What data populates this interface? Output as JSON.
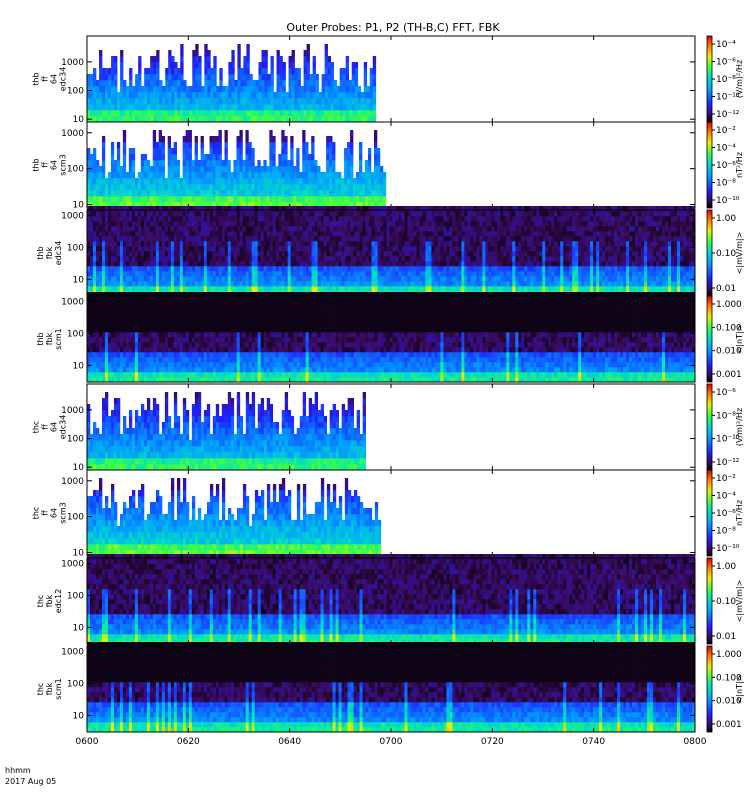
{
  "chart_data": {
    "type": "heatmap",
    "title": "Outer Probes: P1, P2 (TH-B,C) FFT, FBK",
    "time_axis": {
      "ticks": [
        "0600",
        "0620",
        "0640",
        "0700",
        "0720",
        "0740",
        "0800"
      ],
      "label_line1": "hhmm",
      "label_line2": "2017 Aug 05"
    },
    "panels": [
      {
        "ylabel": [
          "thb",
          "ff",
          "64",
          "edc34"
        ],
        "y_ticks": [
          "10",
          "100",
          "1000"
        ],
        "ylim": [
          8,
          8000
        ],
        "data_end": "0657",
        "colorbar": {
          "label": "(V/m)²/Hz",
          "ticks": [
            "10⁻⁴",
            "10⁻⁶",
            "10⁻⁸",
            "10⁻¹⁰",
            "10⁻¹²"
          ]
        }
      },
      {
        "ylabel": [
          "thb",
          "ff",
          "64",
          "scm3"
        ],
        "y_ticks": [
          "10",
          "100",
          "1000"
        ],
        "ylim": [
          8,
          2000
        ],
        "data_end": "0659",
        "colorbar": {
          "label": "nT²/Hz",
          "ticks": [
            "10⁻²",
            "10⁻⁴",
            "10⁻⁶",
            "10⁻⁸",
            "10⁻¹⁰"
          ]
        }
      },
      {
        "ylabel": [
          "thb",
          "fbk",
          "edc34"
        ],
        "y_ticks": [
          "10",
          "100",
          "1000"
        ],
        "ylim": [
          3,
          1500
        ],
        "data_end": "0800",
        "colorbar": {
          "label": "<|mV/m|>",
          "ticks": [
            "1.00",
            "0.10",
            "0.01"
          ]
        }
      },
      {
        "ylabel": [
          "thb",
          "fbk",
          "scm1"
        ],
        "y_ticks": [
          "10",
          "100",
          "1000"
        ],
        "ylim": [
          3,
          1500
        ],
        "data_end": "0800",
        "colorbar": {
          "label": "<|nT|>",
          "ticks": [
            "1.000",
            "0.100",
            "0.010",
            "0.001"
          ]
        }
      },
      {
        "ylabel": [
          "thc",
          "ff",
          "64",
          "edc34"
        ],
        "y_ticks": [
          "10",
          "100",
          "1000"
        ],
        "ylim": [
          8,
          8000
        ],
        "data_end": "0655",
        "colorbar": {
          "label": "(V/m)²/Hz",
          "ticks": [
            "10⁻⁶",
            "10⁻⁸",
            "10⁻¹⁰",
            "10⁻¹²"
          ]
        }
      },
      {
        "ylabel": [
          "thc",
          "ff",
          "64",
          "scm3"
        ],
        "y_ticks": [
          "10",
          "100",
          "1000"
        ],
        "ylim": [
          8,
          2000
        ],
        "data_end": "0658",
        "colorbar": {
          "label": "nT²/Hz",
          "ticks": [
            "10⁻²",
            "10⁻⁴",
            "10⁻⁶",
            "10⁻⁸",
            "10⁻¹⁰"
          ]
        }
      },
      {
        "ylabel": [
          "thc",
          "fbk",
          "edc12"
        ],
        "y_ticks": [
          "10",
          "100",
          "1000"
        ],
        "ylim": [
          3,
          1500
        ],
        "data_end": "0800",
        "colorbar": {
          "label": "<|mV/m|>",
          "ticks": [
            "1.00",
            "0.10",
            "0.01"
          ]
        }
      },
      {
        "ylabel": [
          "thc",
          "fbk",
          "scm1"
        ],
        "y_ticks": [
          "10",
          "100",
          "1000"
        ],
        "ylim": [
          3,
          1500
        ],
        "data_end": "0800",
        "colorbar": {
          "label": "<|nT|>",
          "ticks": [
            "1.000",
            "0.100",
            "0.010",
            "0.001"
          ]
        }
      }
    ]
  }
}
